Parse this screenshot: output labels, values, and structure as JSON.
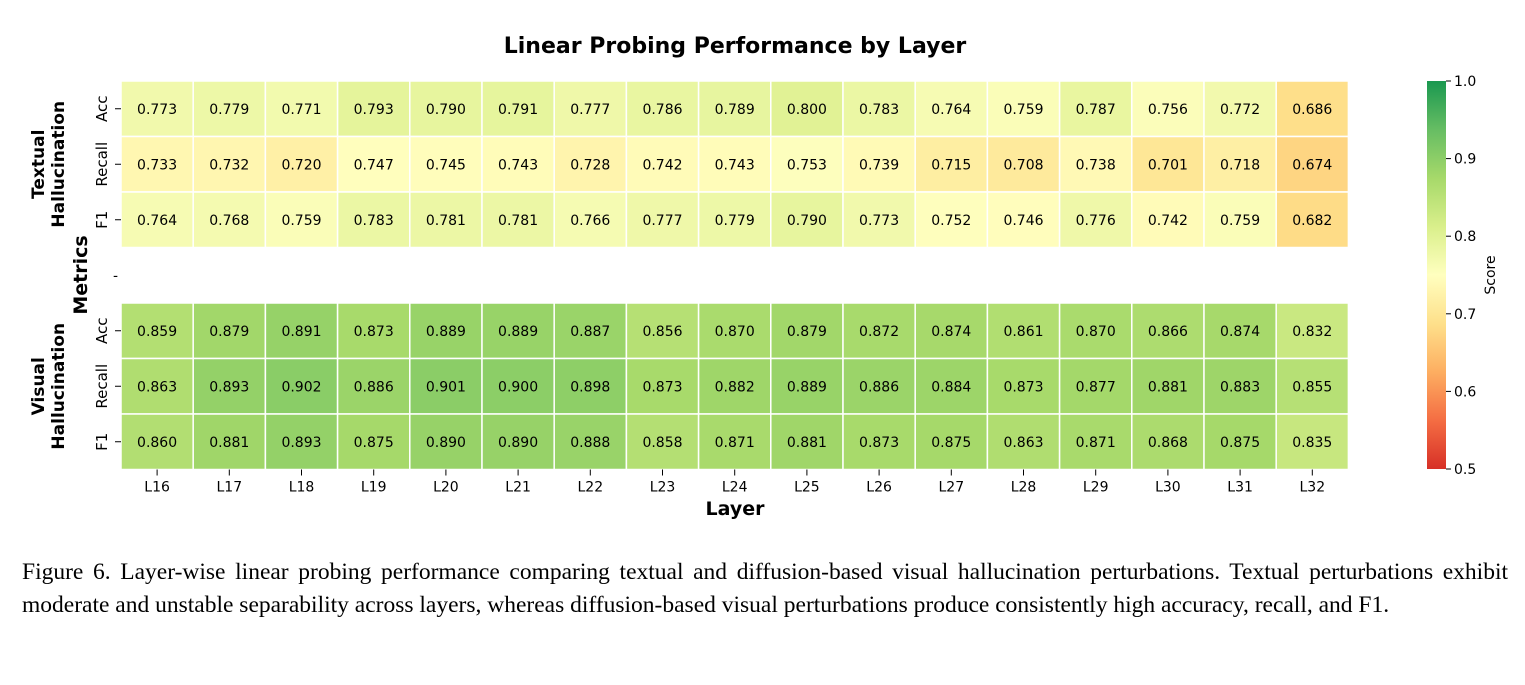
{
  "chart_data": {
    "type": "heatmap",
    "title": "Linear Probing Performance by Layer",
    "xlabel": "Layer",
    "ylabel": "Metrics",
    "x_categories": [
      "L16",
      "L17",
      "L18",
      "L19",
      "L20",
      "L21",
      "L22",
      "L23",
      "L24",
      "L25",
      "L26",
      "L27",
      "L28",
      "L29",
      "L30",
      "L31",
      "L32"
    ],
    "groups": [
      {
        "name": "Textual\nHallucination",
        "rows": [
          {
            "metric": "Acc",
            "values": [
              0.773,
              0.779,
              0.771,
              0.793,
              0.79,
              0.791,
              0.777,
              0.786,
              0.789,
              0.8,
              0.783,
              0.764,
              0.759,
              0.787,
              0.756,
              0.772,
              0.686
            ]
          },
          {
            "metric": "Recall",
            "values": [
              0.733,
              0.732,
              0.72,
              0.747,
              0.745,
              0.743,
              0.728,
              0.742,
              0.743,
              0.753,
              0.739,
              0.715,
              0.708,
              0.738,
              0.701,
              0.718,
              0.674
            ]
          },
          {
            "metric": "F1",
            "values": [
              0.764,
              0.768,
              0.759,
              0.783,
              0.781,
              0.781,
              0.766,
              0.777,
              0.779,
              0.79,
              0.773,
              0.752,
              0.746,
              0.776,
              0.742,
              0.759,
              0.682
            ]
          }
        ]
      },
      {
        "name": "Visual\nHallucination",
        "rows": [
          {
            "metric": "Acc",
            "values": [
              0.859,
              0.879,
              0.891,
              0.873,
              0.889,
              0.889,
              0.887,
              0.856,
              0.87,
              0.879,
              0.872,
              0.874,
              0.861,
              0.87,
              0.866,
              0.874,
              0.832
            ]
          },
          {
            "metric": "Recall",
            "values": [
              0.863,
              0.893,
              0.902,
              0.886,
              0.901,
              0.9,
              0.898,
              0.873,
              0.882,
              0.889,
              0.886,
              0.884,
              0.873,
              0.877,
              0.881,
              0.883,
              0.855
            ]
          },
          {
            "metric": "F1",
            "values": [
              0.86,
              0.881,
              0.893,
              0.875,
              0.89,
              0.89,
              0.888,
              0.858,
              0.871,
              0.881,
              0.873,
              0.875,
              0.863,
              0.871,
              0.868,
              0.875,
              0.835
            ]
          }
        ]
      }
    ],
    "separator_label": "-",
    "value_format": "3 decimals",
    "colorbar": {
      "label": "Score",
      "range": [
        0.5,
        1.0
      ],
      "ticks": [
        "0.5",
        "0.6",
        "0.7",
        "0.8",
        "0.9",
        "1.0"
      ],
      "colormap": "RdYlGn",
      "stops": [
        "#d73027",
        "#f46d43",
        "#fdae61",
        "#fee08b",
        "#ffffbf",
        "#d9ef8b",
        "#a6d96a",
        "#66bd63",
        "#1a9850"
      ]
    }
  },
  "caption": "Figure 6. Layer-wise linear probing performance comparing textual and diffusion-based visual hallucination perturbations. Textual perturbations exhibit moderate and unstable separability across layers, whereas diffusion-based visual perturbations produce consistently high accuracy, recall, and F1."
}
